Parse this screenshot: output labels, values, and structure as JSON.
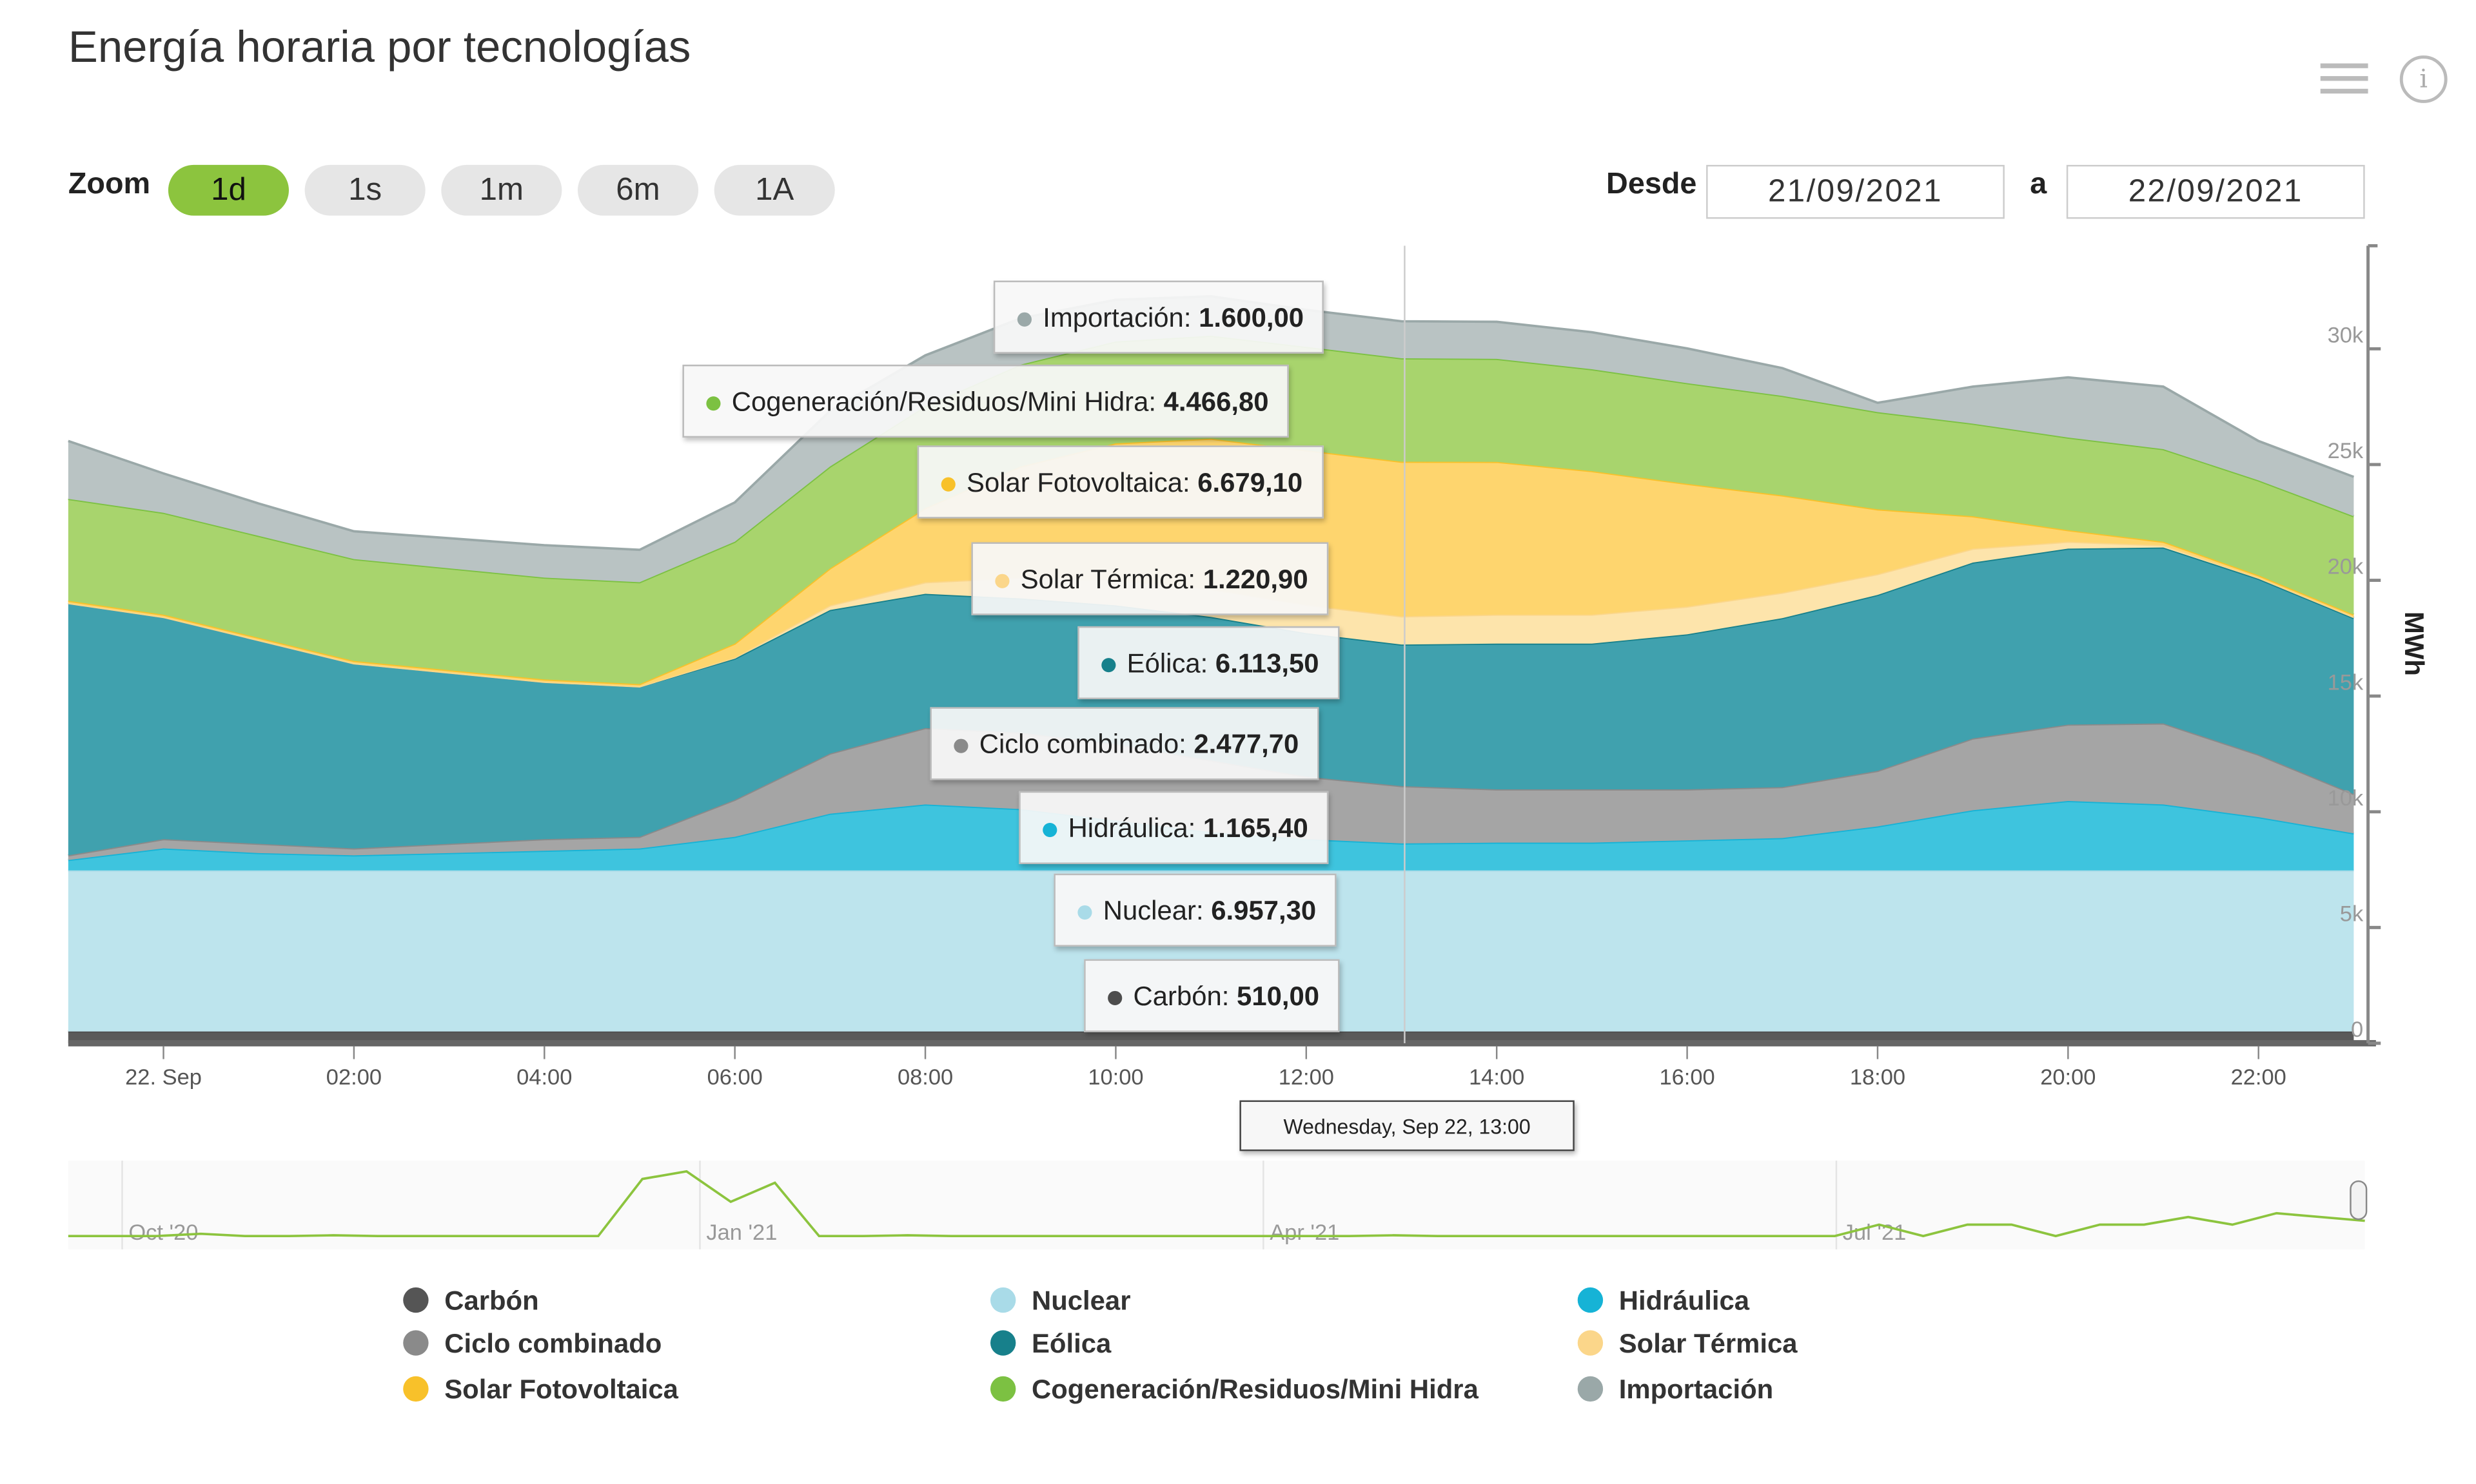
{
  "header": {
    "title": "Energía horaria por tecnologías",
    "menu_icon": "hamburger-menu-icon",
    "info_icon": "info-icon",
    "info_glyph": "i"
  },
  "zoom": {
    "label": "Zoom",
    "buttons": [
      "1d",
      "1s",
      "1m",
      "6m",
      "1A"
    ],
    "active": "1d"
  },
  "range": {
    "from_label": "Desde",
    "from_value": "21/09/2021",
    "to_label": "a",
    "to_value": "22/09/2021"
  },
  "colors": {
    "accent": "#8cc43e"
  },
  "chart_data": {
    "type": "area",
    "stacked": true,
    "title": "Energía horaria por tecnologías",
    "ylabel": "MWh",
    "ylim": [
      0,
      35000
    ],
    "yticks": [
      0,
      5000,
      10000,
      15000,
      20000,
      25000,
      30000
    ],
    "ytick_labels": [
      "0",
      "5k",
      "10k",
      "15k",
      "20k",
      "25k",
      "30k"
    ],
    "x_hours": [
      -1,
      0,
      1,
      2,
      3,
      4,
      5,
      6,
      7,
      8,
      9,
      10,
      11,
      12,
      13,
      14,
      15,
      16,
      17,
      18,
      19,
      20,
      21,
      22,
      23
    ],
    "xticks": [
      0,
      2,
      4,
      6,
      8,
      10,
      12,
      14,
      16,
      18,
      20,
      22
    ],
    "xtick_labels": [
      "22. Sep",
      "02:00",
      "04:00",
      "06:00",
      "08:00",
      "10:00",
      "12:00",
      "14:00",
      "16:00",
      "18:00",
      "20:00",
      "22:00"
    ],
    "series": [
      {
        "name": "Carbón",
        "color": "#4d4d4d",
        "fill": "#5a5a5a",
        "values": [
          510,
          510,
          510,
          510,
          510,
          510,
          510,
          510,
          510,
          510,
          510,
          510,
          510,
          510,
          510,
          510,
          510,
          510,
          510,
          510,
          510,
          510,
          510,
          510,
          510
        ]
      },
      {
        "name": "Nuclear",
        "color": "#a9dbe8",
        "fill": "#bde4ed",
        "values": [
          6957,
          6957,
          6957,
          6957,
          6957,
          6957,
          6957,
          6957,
          6957,
          6957,
          6957,
          6957,
          6957,
          6957,
          6957.3,
          6957,
          6957,
          6957,
          6957,
          6957,
          6957,
          6957,
          6957,
          6957,
          6957
        ]
      },
      {
        "name": "Hidráulica",
        "color": "#16b3d6",
        "fill": "#3ec4de",
        "values": [
          450,
          950,
          750,
          650,
          750,
          850,
          950,
          1450,
          2450,
          2850,
          2650,
          2150,
          1650,
          1350,
          1165.4,
          1200,
          1200,
          1300,
          1400,
          1900,
          2600,
          3000,
          2850,
          2300,
          1600
        ]
      },
      {
        "name": "Ciclo combinado",
        "color": "#8a8a8a",
        "fill": "#a5a5a5",
        "values": [
          200,
          400,
          400,
          300,
          400,
          500,
          500,
          1600,
          2600,
          3300,
          3300,
          3300,
          3100,
          2700,
          2477.7,
          2300,
          2300,
          2200,
          2200,
          2400,
          3100,
          3300,
          3500,
          2700,
          1700
        ]
      },
      {
        "name": "Eólica",
        "color": "#17808b",
        "fill": "#40a1ae",
        "values": [
          10900,
          9600,
          8800,
          8000,
          7400,
          6800,
          6500,
          6100,
          6200,
          5800,
          5800,
          6000,
          6200,
          6200,
          6113.5,
          6300,
          6300,
          6700,
          7300,
          7600,
          7600,
          7600,
          7600,
          7600,
          7600
        ]
      },
      {
        "name": "Solar Térmica",
        "color": "#fbd68a",
        "fill": "#fde4ab",
        "values": [
          0,
          0,
          0,
          0,
          0,
          0,
          0,
          50,
          200,
          500,
          900,
          1100,
          1200,
          1220.9,
          1220.9,
          1250,
          1250,
          1200,
          1100,
          900,
          600,
          300,
          100,
          50,
          50
        ]
      },
      {
        "name": "Solar Fotovoltaica",
        "color": "#f8c12a",
        "fill": "#fed56e",
        "values": [
          100,
          100,
          100,
          100,
          100,
          100,
          100,
          600,
          1600,
          3200,
          4800,
          5900,
          6500,
          6679.1,
          6679.1,
          6600,
          6200,
          5300,
          4200,
          2800,
          1400,
          500,
          150,
          100,
          100
        ]
      },
      {
        "name": "Cogeneración/Residuos/Mini Hidra",
        "color": "#7cc142",
        "fill": "#a8d46d",
        "values": [
          4400,
          4400,
          4400,
          4400,
          4400,
          4400,
          4400,
          4400,
          4400,
          4400,
          4400,
          4400,
          4450,
          4466.8,
          4466.8,
          4450,
          4400,
          4350,
          4300,
          4200,
          4000,
          4000,
          4000,
          4100,
          4250
        ]
      },
      {
        "name": "Importación",
        "color": "#9aa8a8",
        "fill": "#b9c3c3",
        "values": [
          2500,
          1700,
          1400,
          1200,
          1300,
          1400,
          1400,
          1700,
          2400,
          2200,
          2000,
          1800,
          1700,
          1600,
          1600,
          1600,
          1600,
          1500,
          1200,
          400,
          1600,
          2600,
          2700,
          1700,
          1700
        ]
      }
    ],
    "tooltip": {
      "header": "Wednesday, Sep 22, 13:00",
      "items": [
        {
          "name": "Importación",
          "value": "1.600,00"
        },
        {
          "name": "Cogeneración/Residuos/Mini Hidra",
          "value": "4.466,80"
        },
        {
          "name": "Solar Fotovoltaica",
          "value": "6.679,10"
        },
        {
          "name": "Solar Térmica",
          "value": "1.220,90"
        },
        {
          "name": "Eólica",
          "value": "6.113,50"
        },
        {
          "name": "Ciclo combinado",
          "value": "2.477,70"
        },
        {
          "name": "Hidráulica",
          "value": "1.165,40"
        },
        {
          "name": "Nuclear",
          "value": "6.957,30"
        },
        {
          "name": "Carbón",
          "value": "510,00"
        }
      ]
    },
    "navigator": {
      "labels": [
        "Oct '20",
        "Jan '21",
        "Apr '21",
        "Jul '21"
      ],
      "values": [
        0.05,
        0.05,
        0.05,
        0.08,
        0.05,
        0.05,
        0.06,
        0.05,
        0.05,
        0.05,
        0.05,
        0.05,
        0.05,
        0.8,
        0.9,
        0.5,
        0.75,
        0.05,
        0.05,
        0.06,
        0.05,
        0.05,
        0.05,
        0.05,
        0.05,
        0.05,
        0.05,
        0.05,
        0.05,
        0.05,
        0.06,
        0.05,
        0.05,
        0.05,
        0.05,
        0.05,
        0.05,
        0.05,
        0.05,
        0.05,
        0.05,
        0.2,
        0.05,
        0.2,
        0.2,
        0.05,
        0.2,
        0.2,
        0.3,
        0.2,
        0.35,
        0.3,
        0.25
      ]
    }
  }
}
